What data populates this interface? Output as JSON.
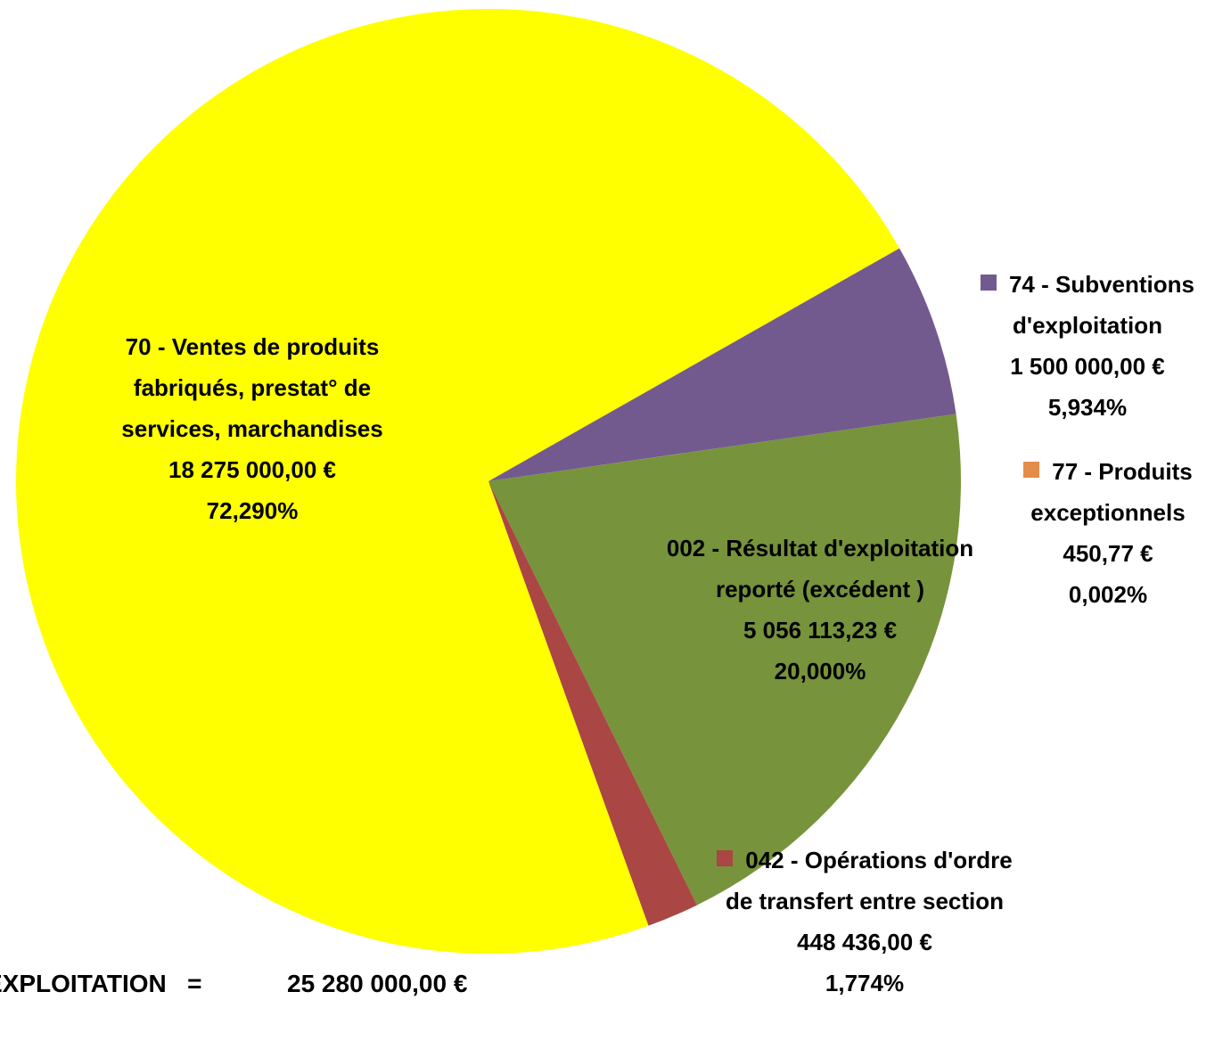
{
  "chart_data": {
    "type": "pie",
    "categories": [
      "70 - Ventes de produits fabriqués, prestat° de services, marchandises",
      "74 - Subventions d'exploitation",
      "77 - Produits exceptionnels",
      "002 - Résultat d'exploitation reporté (excédent )",
      "042 - Opérations d'ordre de transfert entre section"
    ],
    "values": [
      18275000,
      1500000,
      450.77,
      5056113.23,
      448436
    ],
    "value_labels": [
      "18 275 000,00 €",
      "1 500 000,00 €",
      "450,77 €",
      "5 056 113,23 €",
      "448 436,00 €"
    ],
    "percentages": [
      72.29,
      5.934,
      0.002,
      20,
      1.774
    ],
    "percentage_labels": [
      "72,290%",
      "5,934%",
      "0,002%",
      "20,000%",
      "1,774%"
    ],
    "colors": [
      "#ffff00",
      "#725a8f",
      "#e48c4a",
      "#77933c",
      "#aa4644"
    ],
    "total_caption": "EXPLOITATION   =",
    "total": 25280000,
    "total_label": "25 280 000,00 €"
  }
}
